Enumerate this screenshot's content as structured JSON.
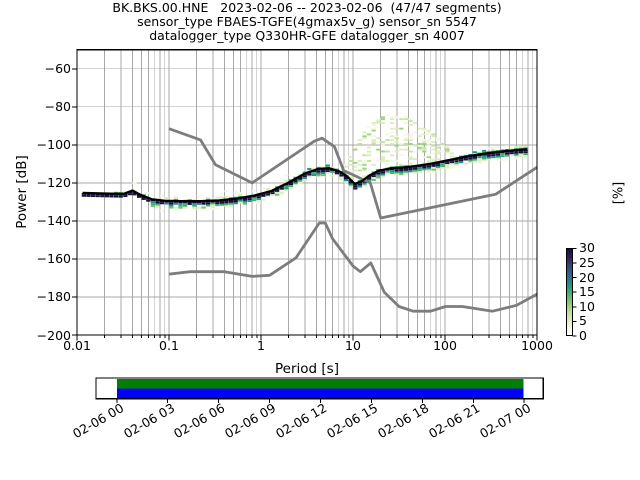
{
  "title": {
    "line1": "BK.BKS.00.HNE   2023-02-06 -- 2023-02-06  (47/47 segments)",
    "line2": "sensor_type FBAES-TGFE(4gmax5v_g) sensor_sn 5547",
    "line3": "datalogger_type Q330HR-GFE datalogger_sn 4007"
  },
  "timeline": {
    "labels": [
      "02-06 00",
      "02-06 03",
      "02-06 06",
      "02-06 09",
      "02-06 12",
      "02-06 15",
      "02-06 18",
      "02-06 21",
      "02-07 00"
    ],
    "segment_color": "#008000",
    "data_color": "#0000ff"
  },
  "chart_data": {
    "type": "heatmap",
    "subtype": "ppsd-probabilistic-power-spectral-density",
    "xlabel": "Period [s]",
    "ylabel": "Power [dB]",
    "xscale": "log",
    "xlim": [
      0.01,
      1000
    ],
    "ylim": [
      -200,
      -50
    ],
    "grid": true,
    "x_tick_values": [
      0.01,
      0.1,
      1,
      10,
      100,
      1000
    ],
    "x_tick_labels": [
      "0.01",
      "0.1",
      "1",
      "10",
      "100",
      "1000"
    ],
    "y_tick_values": [
      -60,
      -80,
      -100,
      -120,
      -140,
      -160,
      -180,
      -200
    ],
    "y_tick_labels": [
      "−60",
      "−80",
      "−100",
      "−120",
      "−140",
      "−160",
      "−180",
      "−200"
    ],
    "colorbar": {
      "label": "[%]",
      "min": 0,
      "max": 30,
      "tick_values": [
        30,
        25,
        20,
        15,
        10,
        5,
        0
      ],
      "tick_labels": [
        "30",
        "25",
        "20",
        "15",
        "10",
        "5",
        "0"
      ]
    },
    "palette": [
      "#ffffff",
      "#f3f8e4",
      "#ddedc1",
      "#c3e29f",
      "#a0d37c",
      "#6fc16c",
      "#3fae6f",
      "#21918c",
      "#2c718e",
      "#34548b",
      "#3a3a75",
      "#2a1b55",
      "#170f3e"
    ],
    "noise_models": {
      "color": "#7d7d7d",
      "nhnm": [
        [
          0.1,
          -91.5
        ],
        [
          0.22,
          -97.4
        ],
        [
          0.32,
          -110.5
        ],
        [
          0.8,
          -120.0
        ],
        [
          3.8,
          -98.1
        ],
        [
          4.6,
          -96.5
        ],
        [
          6.3,
          -101.0
        ],
        [
          7.9,
          -113.5
        ],
        [
          15.4,
          -120.0
        ],
        [
          20.0,
          -138.5
        ],
        [
          354.8,
          -126.0
        ],
        [
          1000,
          -111.8
        ]
      ],
      "nlnm": [
        [
          0.1,
          -168.0
        ],
        [
          0.17,
          -166.7
        ],
        [
          0.4,
          -166.7
        ],
        [
          0.8,
          -169.2
        ],
        [
          1.24,
          -168.6
        ],
        [
          2.4,
          -159.4
        ],
        [
          4.3,
          -141.1
        ],
        [
          5.0,
          -141.1
        ],
        [
          6.0,
          -149.4
        ],
        [
          10.0,
          -163.7
        ],
        [
          12.0,
          -166.7
        ],
        [
          15.6,
          -162.1
        ],
        [
          21.9,
          -177.5
        ],
        [
          31.6,
          -185.0
        ],
        [
          45.0,
          -187.5
        ],
        [
          70.0,
          -187.5
        ],
        [
          101.0,
          -185.0
        ],
        [
          154.0,
          -185.0
        ],
        [
          328.0,
          -187.5
        ],
        [
          600.0,
          -184.4
        ],
        [
          1000,
          -178.5
        ]
      ]
    },
    "mode_line": {
      "color": "#000000",
      "points": [
        [
          0.0115,
          -125.3
        ],
        [
          0.02,
          -125.6
        ],
        [
          0.032,
          -125.8
        ],
        [
          0.04,
          -124.0
        ],
        [
          0.05,
          -126.5
        ],
        [
          0.065,
          -128.6
        ],
        [
          0.09,
          -129.4
        ],
        [
          0.14,
          -129.6
        ],
        [
          0.22,
          -129.6
        ],
        [
          0.35,
          -129.2
        ],
        [
          0.55,
          -128.2
        ],
        [
          0.85,
          -126.6
        ],
        [
          1.3,
          -124.2
        ],
        [
          2.0,
          -119.8
        ],
        [
          3.0,
          -115.0
        ],
        [
          4.2,
          -112.6
        ],
        [
          5.5,
          -112.3
        ],
        [
          7.0,
          -113.8
        ],
        [
          8.5,
          -116.3
        ],
        [
          10.5,
          -120.6
        ],
        [
          12.5,
          -119.0
        ],
        [
          15,
          -116.2
        ],
        [
          19,
          -113.6
        ],
        [
          25,
          -112.4
        ],
        [
          35,
          -111.9
        ],
        [
          50,
          -111.0
        ],
        [
          70,
          -109.9
        ],
        [
          100,
          -108.4
        ],
        [
          145,
          -106.8
        ],
        [
          210,
          -105.4
        ],
        [
          300,
          -104.3
        ],
        [
          430,
          -103.4
        ],
        [
          600,
          -102.7
        ],
        [
          780,
          -102.3
        ]
      ]
    },
    "histogram": {
      "period_range": [
        0.0115,
        780
      ],
      "db_bin_width": 1,
      "band_halfwidth_db": 3.5
    },
    "ghost_hill": {
      "period_range": [
        5.5,
        200
      ],
      "peak_period": 26,
      "peak_db": -83.5,
      "left_curvature": 110,
      "right_curvature": 45
    },
    "seed": 7
  }
}
